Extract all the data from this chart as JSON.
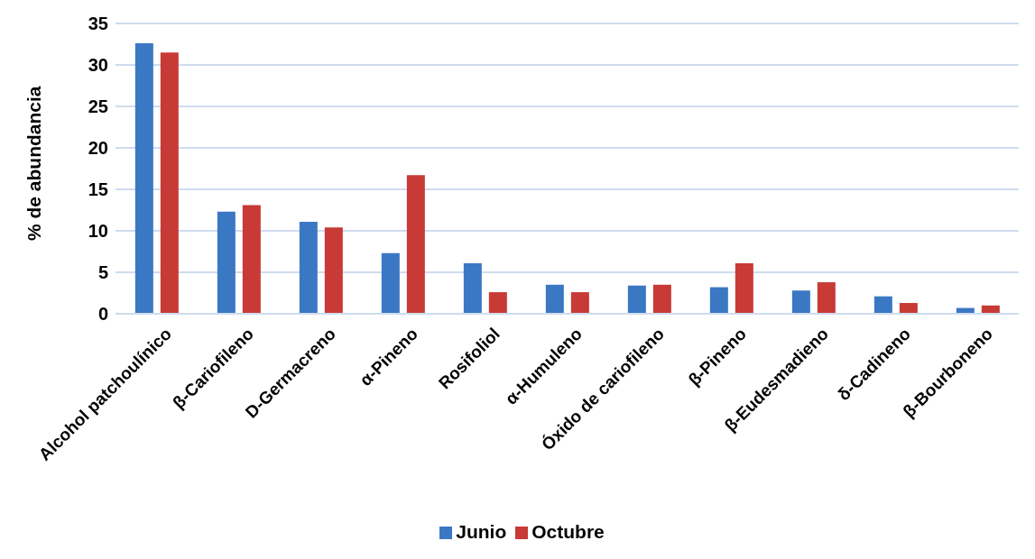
{
  "chart_data": {
    "type": "bar",
    "ylabel": "% de abundancia",
    "categories": [
      "Alcohol patchoulínico",
      "β-Cariofileno",
      "D-Germacreno",
      "α-Pineno",
      "Rosifoliol",
      "α-Humuleno",
      "Óxido de cariofileno",
      "β-Pineno",
      "β-Eudesmadieno",
      "δ-Cadineno",
      "β-Bourboneno"
    ],
    "series": [
      {
        "name": "Junio",
        "color": "#3a78c4",
        "values": [
          32.6,
          12.3,
          11.1,
          7.3,
          6.1,
          3.5,
          3.4,
          3.2,
          2.8,
          2.1,
          0.7
        ]
      },
      {
        "name": "Octubre",
        "color": "#c83a36",
        "values": [
          31.5,
          13.1,
          10.4,
          16.7,
          2.6,
          2.6,
          3.5,
          6.1,
          3.8,
          1.3,
          1.0
        ]
      }
    ],
    "ylim": [
      0,
      35
    ],
    "yticks": [
      0,
      5,
      10,
      15,
      20,
      25,
      30,
      35
    ],
    "grid": "y",
    "legend": "bottom"
  }
}
